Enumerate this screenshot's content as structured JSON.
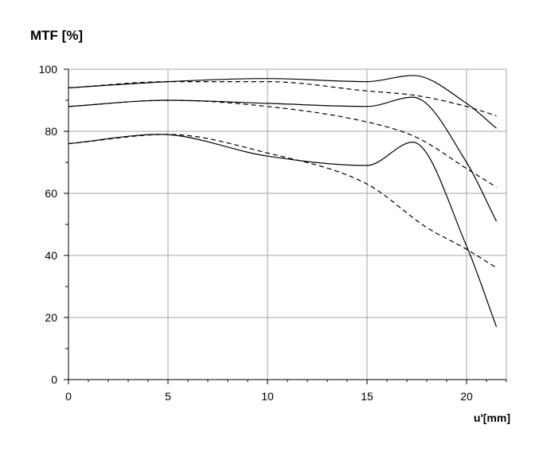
{
  "chart_data": {
    "type": "line",
    "title": "MTF [%]",
    "xlabel": "u'[mm]",
    "ylabel": "",
    "xlim": [
      0,
      22
    ],
    "ylim": [
      0,
      100
    ],
    "xticks": [
      0,
      5,
      10,
      15,
      20
    ],
    "yticks": [
      0,
      20,
      40,
      60,
      80,
      100
    ],
    "grid": true,
    "line_color": "#000000",
    "grid_color": "#a6a6a6",
    "series": [
      {
        "style": "solid",
        "x": [
          0,
          5,
          10,
          15,
          17.3,
          20,
          21.5
        ],
        "y": [
          94,
          96,
          97,
          96,
          98,
          89,
          81
        ]
      },
      {
        "style": "dashed",
        "x": [
          0,
          5,
          10,
          15,
          17.5,
          20,
          21.5
        ],
        "y": [
          94,
          96,
          96,
          93,
          91.5,
          88,
          85
        ]
      },
      {
        "style": "solid",
        "x": [
          0,
          5,
          10,
          15,
          17.3,
          20,
          21.5
        ],
        "y": [
          88,
          90,
          89,
          88,
          91,
          70,
          51
        ]
      },
      {
        "style": "dashed",
        "x": [
          0,
          5,
          10,
          15,
          17.5,
          20,
          21.5
        ],
        "y": [
          88,
          90,
          88,
          83,
          78,
          68,
          62
        ]
      },
      {
        "style": "solid",
        "x": [
          0,
          4.6,
          10,
          15,
          17.3,
          20,
          21.5
        ],
        "y": [
          76,
          79,
          72,
          69,
          76.5,
          43,
          17
        ]
      },
      {
        "style": "dashed",
        "x": [
          0,
          5,
          10,
          15,
          18,
          20,
          21.5
        ],
        "y": [
          76,
          79,
          73,
          63,
          49,
          42,
          36
        ]
      }
    ]
  }
}
